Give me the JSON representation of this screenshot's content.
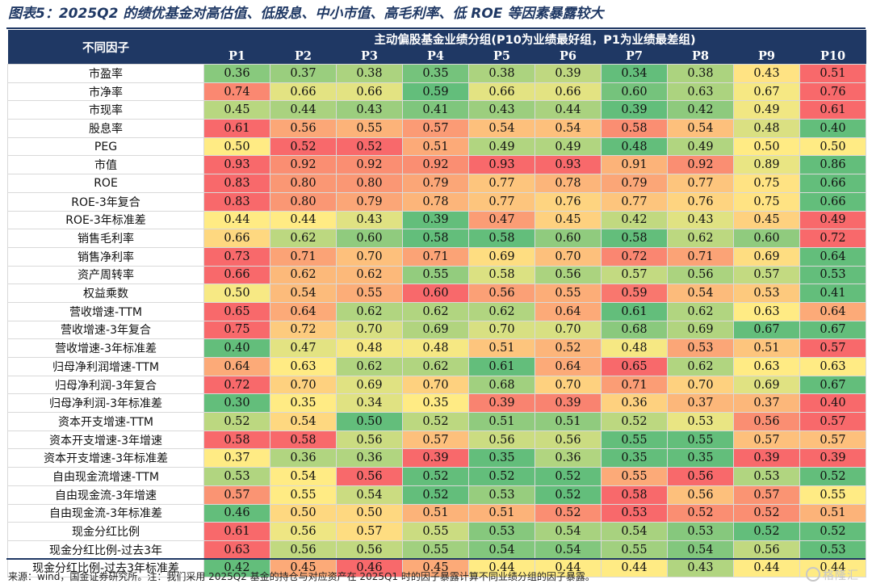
{
  "title": "图表5：2025Q2 的绩优基金对高估值、低股息、中小市值、高毛利率、低 ROE 等因素暴露较大",
  "source": "来源：wind，国金证券研究所。注：我们采用 2025Q2 基金的持仓与对应资产在 2025Q1 时的因子暴露计算不同业绩分组的因子暴露。",
  "watermark": "格隆汇",
  "colors": {
    "header_bg": "#1f3864",
    "low": "#63be7b",
    "mid": "#ffeb84",
    "high": "#f8696b"
  },
  "chart_data": {
    "type": "heatmap",
    "title": "图表5：2025Q2 的绩优基金对高估值、低股息、中小市值、高毛利率、低 ROE 等因素暴露较大",
    "row_header": "不同因子",
    "column_group_header": "主动偏股基金业绩分组(P10为业绩最好组，P1为业绩最差组)",
    "columns": [
      "P1",
      "P2",
      "P3",
      "P4",
      "P5",
      "P6",
      "P7",
      "P8",
      "P9",
      "P10"
    ],
    "color_scale": "per-row: green = lowest, yellow = middle, red = highest",
    "rows": [
      {
        "factor": "市盈率",
        "values": [
          0.36,
          0.37,
          0.38,
          0.35,
          0.38,
          0.39,
          0.34,
          0.38,
          0.43,
          0.51
        ]
      },
      {
        "factor": "市净率",
        "values": [
          0.74,
          0.66,
          0.66,
          0.59,
          0.66,
          0.66,
          0.6,
          0.63,
          0.67,
          0.76
        ]
      },
      {
        "factor": "市现率",
        "values": [
          0.45,
          0.44,
          0.43,
          0.41,
          0.43,
          0.44,
          0.39,
          0.42,
          0.49,
          0.61
        ]
      },
      {
        "factor": "股息率",
        "values": [
          0.61,
          0.56,
          0.55,
          0.57,
          0.54,
          0.54,
          0.58,
          0.54,
          0.48,
          0.4
        ]
      },
      {
        "factor": "PEG",
        "values": [
          0.5,
          0.52,
          0.52,
          0.51,
          0.49,
          0.49,
          0.48,
          0.49,
          0.5,
          0.5
        ]
      },
      {
        "factor": "市值",
        "values": [
          0.93,
          0.92,
          0.92,
          0.92,
          0.93,
          0.93,
          0.91,
          0.92,
          0.89,
          0.86
        ]
      },
      {
        "factor": "ROE",
        "values": [
          0.83,
          0.8,
          0.8,
          0.79,
          0.77,
          0.78,
          0.79,
          0.77,
          0.75,
          0.66
        ]
      },
      {
        "factor": "ROE-3年复合",
        "values": [
          0.83,
          0.8,
          0.79,
          0.78,
          0.77,
          0.76,
          0.77,
          0.76,
          0.75,
          0.66
        ]
      },
      {
        "factor": "ROE-3年标准差",
        "values": [
          0.44,
          0.44,
          0.43,
          0.39,
          0.47,
          0.45,
          0.42,
          0.43,
          0.45,
          0.49
        ]
      },
      {
        "factor": "销售毛利率",
        "values": [
          0.66,
          0.62,
          0.6,
          0.58,
          0.58,
          0.6,
          0.58,
          0.62,
          0.6,
          0.72
        ]
      },
      {
        "factor": "销售净利率",
        "values": [
          0.73,
          0.71,
          0.7,
          0.71,
          0.69,
          0.7,
          0.72,
          0.71,
          0.69,
          0.64
        ]
      },
      {
        "factor": "资产周转率",
        "values": [
          0.66,
          0.62,
          0.62,
          0.55,
          0.58,
          0.56,
          0.57,
          0.56,
          0.57,
          0.53
        ]
      },
      {
        "factor": "权益乘数",
        "values": [
          0.5,
          0.54,
          0.55,
          0.6,
          0.56,
          0.55,
          0.59,
          0.54,
          0.53,
          0.41
        ]
      },
      {
        "factor": "营收增速-TTM",
        "values": [
          0.65,
          0.64,
          0.62,
          0.62,
          0.62,
          0.64,
          0.61,
          0.62,
          0.63,
          0.64
        ]
      },
      {
        "factor": "营收增速-3年复合",
        "values": [
          0.75,
          0.72,
          0.7,
          0.69,
          0.7,
          0.7,
          0.68,
          0.69,
          0.67,
          0.67
        ]
      },
      {
        "factor": "营收增速-3年标准差",
        "values": [
          0.4,
          0.47,
          0.48,
          0.48,
          0.51,
          0.52,
          0.48,
          0.53,
          0.51,
          0.57
        ]
      },
      {
        "factor": "归母净利润增速-TTM",
        "values": [
          0.64,
          0.63,
          0.62,
          0.62,
          0.61,
          0.64,
          0.65,
          0.62,
          0.63,
          0.63
        ]
      },
      {
        "factor": "归母净利润-3年复合",
        "values": [
          0.72,
          0.7,
          0.69,
          0.7,
          0.68,
          0.7,
          0.71,
          0.7,
          0.69,
          0.67
        ]
      },
      {
        "factor": "归母净利润-3年标准差",
        "values": [
          0.3,
          0.35,
          0.34,
          0.35,
          0.39,
          0.39,
          0.36,
          0.37,
          0.37,
          0.4
        ]
      },
      {
        "factor": "资本开支增速-TTM",
        "values": [
          0.52,
          0.54,
          0.5,
          0.52,
          0.51,
          0.51,
          0.52,
          0.53,
          0.56,
          0.57
        ]
      },
      {
        "factor": "资本开支增速-3年增速",
        "values": [
          0.58,
          0.58,
          0.56,
          0.57,
          0.56,
          0.56,
          0.55,
          0.55,
          0.57,
          0.57
        ]
      },
      {
        "factor": "资本开支增速-3年标准差",
        "values": [
          0.37,
          0.36,
          0.36,
          0.39,
          0.35,
          0.36,
          0.35,
          0.35,
          0.39,
          0.39
        ]
      },
      {
        "factor": "自由现金流增速-TTM",
        "values": [
          0.53,
          0.54,
          0.56,
          0.52,
          0.52,
          0.52,
          0.55,
          0.56,
          0.53,
          0.52
        ]
      },
      {
        "factor": "自由现金流-3年增速",
        "values": [
          0.57,
          0.55,
          0.54,
          0.52,
          0.53,
          0.52,
          0.58,
          0.56,
          0.57,
          0.55
        ]
      },
      {
        "factor": "自由现金流-3年标准差",
        "values": [
          0.46,
          0.5,
          0.5,
          0.51,
          0.51,
          0.52,
          0.53,
          0.52,
          0.52,
          0.51
        ]
      },
      {
        "factor": "现金分红比例",
        "values": [
          0.61,
          0.56,
          0.57,
          0.55,
          0.53,
          0.54,
          0.54,
          0.53,
          0.52,
          0.52
        ]
      },
      {
        "factor": "现金分红比例-过去3年",
        "values": [
          0.63,
          0.56,
          0.56,
          0.55,
          0.54,
          0.54,
          0.55,
          0.54,
          0.56,
          0.53
        ]
      },
      {
        "factor": "现金分红比例-过去3年标准差",
        "values": [
          0.42,
          0.45,
          0.46,
          0.45,
          0.44,
          0.44,
          0.44,
          0.43,
          0.44,
          0.44
        ]
      }
    ]
  }
}
